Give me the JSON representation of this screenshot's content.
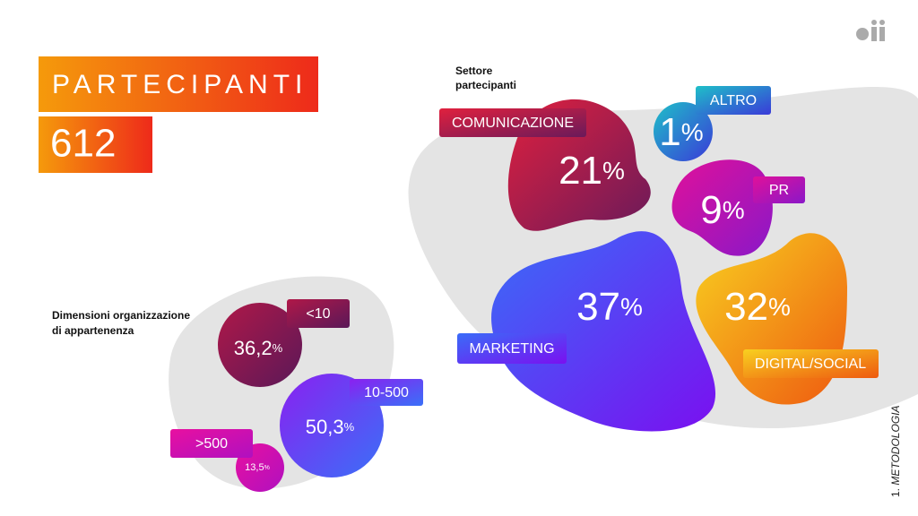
{
  "header": {
    "title": "PARTECIPANTI",
    "count": "612"
  },
  "sector": {
    "title": [
      "Settore",
      "partecipanti"
    ],
    "items": [
      {
        "label": "COMUNICAZIONE",
        "value": "21",
        "unit": "%"
      },
      {
        "label": "ALTRO",
        "value": "1",
        "unit": "%"
      },
      {
        "label": "PR",
        "value": "9",
        "unit": "%"
      },
      {
        "label": "MARKETING",
        "value": "37",
        "unit": "%"
      },
      {
        "label": "DIGITAL/SOCIAL",
        "value": "32",
        "unit": "%"
      }
    ]
  },
  "size": {
    "title": [
      "Dimensioni organizzazione",
      "di appartenenza"
    ],
    "items": [
      {
        "label": "<10",
        "value": "36,2",
        "unit": "%"
      },
      {
        "label": "10-500",
        "value": "50,3",
        "unit": "%"
      },
      {
        "label": ">500",
        "value": "13,5",
        "unit": "%"
      }
    ]
  },
  "footer": {
    "number": "1.",
    "section": "METODOLOGIA"
  }
}
